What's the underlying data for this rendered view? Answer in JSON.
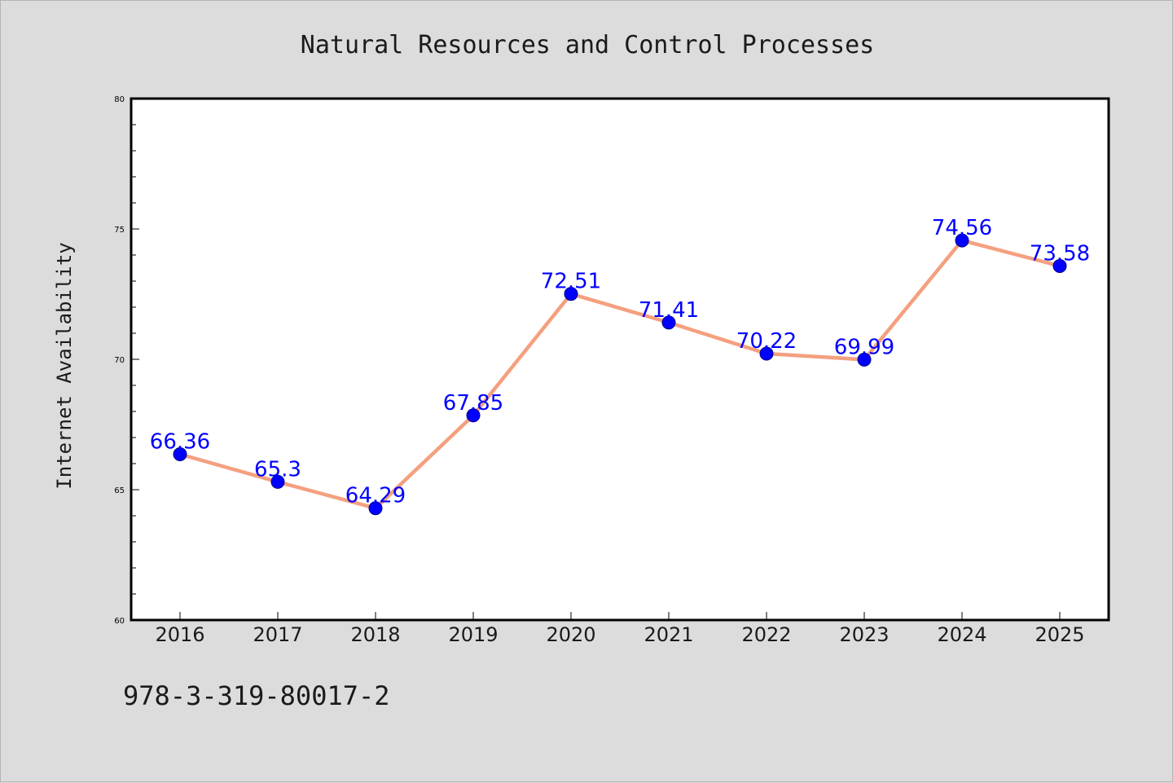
{
  "chart_data": {
    "type": "line",
    "title": "Natural Resources and Control Processes",
    "ylabel": "Internet Availability",
    "xlabel": "",
    "categories": [
      "2016",
      "2017",
      "2018",
      "2019",
      "2020",
      "2021",
      "2022",
      "2023",
      "2024",
      "2025"
    ],
    "values": [
      66.36,
      65.3,
      64.29,
      67.85,
      72.51,
      71.41,
      70.22,
      69.99,
      74.56,
      73.58
    ],
    "data_labels": [
      "66.36",
      "65.3",
      "64.29",
      "67.85",
      "72.51",
      "71.41",
      "70.22",
      "69.99",
      "74.56",
      "73.58"
    ],
    "ylim": [
      60,
      80
    ],
    "yticks": [
      60,
      65,
      70,
      75,
      80
    ],
    "grid": false,
    "line_color": "#f4a07f",
    "marker_color": "#0000ff",
    "label_color": "#0000ff"
  },
  "footer_text": "978-3-319-80017-2"
}
